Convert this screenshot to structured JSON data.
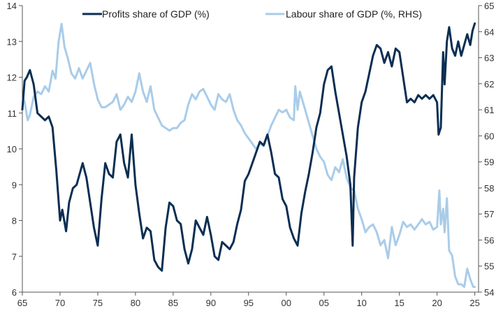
{
  "chart_data": {
    "type": "line",
    "title": "",
    "xlabel": "",
    "ylabel": "",
    "x_tick_labels": [
      "65",
      "70",
      "75",
      "80",
      "85",
      "90",
      "95",
      "00",
      "05",
      "10",
      "15",
      "20",
      "25"
    ],
    "x_tick_years": [
      1965,
      1970,
      1975,
      1980,
      1985,
      1990,
      1995,
      2000,
      2005,
      2010,
      2015,
      2020,
      2025
    ],
    "xlim": [
      1965,
      2025.5
    ],
    "y_left": {
      "lim": [
        6,
        14
      ],
      "ticks": [
        6,
        7,
        8,
        9,
        10,
        11,
        12,
        13,
        14
      ]
    },
    "y_right": {
      "lim": [
        54,
        65
      ],
      "ticks": [
        54,
        55,
        56,
        57,
        58,
        59,
        60,
        61,
        62,
        63,
        64,
        65
      ]
    },
    "grid": false,
    "legend_position": "top",
    "series": [
      {
        "name": "Profits share of GDP (%)",
        "axis": "left",
        "color": "#0b2e52",
        "points": [
          [
            1965.0,
            11.1
          ],
          [
            1965.3,
            11.9
          ],
          [
            1965.6,
            12.0
          ],
          [
            1966.0,
            12.2
          ],
          [
            1966.5,
            11.8
          ],
          [
            1967.0,
            11.0
          ],
          [
            1967.5,
            10.9
          ],
          [
            1968.0,
            10.8
          ],
          [
            1968.5,
            10.9
          ],
          [
            1969.0,
            10.6
          ],
          [
            1969.5,
            9.4
          ],
          [
            1970.0,
            8.0
          ],
          [
            1970.3,
            8.3
          ],
          [
            1970.8,
            7.7
          ],
          [
            1971.2,
            8.5
          ],
          [
            1971.7,
            8.9
          ],
          [
            1972.2,
            9.0
          ],
          [
            1972.6,
            9.3
          ],
          [
            1973.0,
            9.6
          ],
          [
            1973.5,
            9.2
          ],
          [
            1974.0,
            8.5
          ],
          [
            1974.5,
            7.8
          ],
          [
            1975.0,
            7.3
          ],
          [
            1975.5,
            8.6
          ],
          [
            1976.0,
            9.6
          ],
          [
            1976.5,
            9.3
          ],
          [
            1977.0,
            9.2
          ],
          [
            1977.5,
            10.2
          ],
          [
            1978.0,
            10.4
          ],
          [
            1978.5,
            9.6
          ],
          [
            1979.0,
            9.2
          ],
          [
            1979.5,
            10.4
          ],
          [
            1980.0,
            9.0
          ],
          [
            1980.5,
            8.2
          ],
          [
            1981.0,
            7.5
          ],
          [
            1981.5,
            7.8
          ],
          [
            1982.0,
            7.7
          ],
          [
            1982.5,
            6.9
          ],
          [
            1983.0,
            6.7
          ],
          [
            1983.5,
            6.6
          ],
          [
            1984.0,
            7.8
          ],
          [
            1984.5,
            8.5
          ],
          [
            1985.0,
            8.4
          ],
          [
            1985.5,
            8.0
          ],
          [
            1986.0,
            7.9
          ],
          [
            1986.5,
            7.2
          ],
          [
            1987.0,
            6.8
          ],
          [
            1987.5,
            7.2
          ],
          [
            1988.0,
            8.0
          ],
          [
            1988.5,
            7.8
          ],
          [
            1989.0,
            7.6
          ],
          [
            1989.5,
            8.1
          ],
          [
            1990.0,
            7.6
          ],
          [
            1990.5,
            7.0
          ],
          [
            1991.0,
            6.9
          ],
          [
            1991.5,
            7.4
          ],
          [
            1992.0,
            7.3
          ],
          [
            1992.5,
            7.2
          ],
          [
            1993.0,
            7.4
          ],
          [
            1993.5,
            7.9
          ],
          [
            1994.0,
            8.3
          ],
          [
            1994.5,
            9.1
          ],
          [
            1995.0,
            9.3
          ],
          [
            1995.5,
            9.6
          ],
          [
            1996.0,
            9.9
          ],
          [
            1996.5,
            10.2
          ],
          [
            1997.0,
            10.1
          ],
          [
            1997.5,
            10.4
          ],
          [
            1998.0,
            9.9
          ],
          [
            1998.5,
            9.3
          ],
          [
            1999.0,
            9.2
          ],
          [
            1999.5,
            8.6
          ],
          [
            2000.0,
            8.4
          ],
          [
            2000.5,
            7.8
          ],
          [
            2001.0,
            7.5
          ],
          [
            2001.5,
            7.3
          ],
          [
            2002.0,
            8.2
          ],
          [
            2002.5,
            8.8
          ],
          [
            2003.0,
            9.3
          ],
          [
            2003.5,
            9.9
          ],
          [
            2004.0,
            10.6
          ],
          [
            2004.5,
            11.0
          ],
          [
            2005.0,
            11.8
          ],
          [
            2005.5,
            12.2
          ],
          [
            2006.0,
            12.3
          ],
          [
            2006.5,
            11.6
          ],
          [
            2007.0,
            11.0
          ],
          [
            2007.5,
            10.4
          ],
          [
            2008.0,
            9.8
          ],
          [
            2008.5,
            9.0
          ],
          [
            2008.8,
            7.3
          ],
          [
            2009.0,
            9.2
          ],
          [
            2009.5,
            10.6
          ],
          [
            2010.0,
            11.3
          ],
          [
            2010.5,
            11.6
          ],
          [
            2011.0,
            12.1
          ],
          [
            2011.5,
            12.6
          ],
          [
            2012.0,
            12.9
          ],
          [
            2012.5,
            12.8
          ],
          [
            2013.0,
            12.4
          ],
          [
            2013.5,
            12.7
          ],
          [
            2014.0,
            12.3
          ],
          [
            2014.5,
            12.8
          ],
          [
            2015.0,
            12.7
          ],
          [
            2015.5,
            12.0
          ],
          [
            2016.0,
            11.3
          ],
          [
            2016.5,
            11.4
          ],
          [
            2017.0,
            11.3
          ],
          [
            2017.5,
            11.5
          ],
          [
            2018.0,
            11.4
          ],
          [
            2018.5,
            11.5
          ],
          [
            2019.0,
            11.4
          ],
          [
            2019.5,
            11.5
          ],
          [
            2020.0,
            11.3
          ],
          [
            2020.2,
            10.4
          ],
          [
            2020.5,
            10.6
          ],
          [
            2020.8,
            12.7
          ],
          [
            2021.0,
            11.8
          ],
          [
            2021.3,
            13.0
          ],
          [
            2021.6,
            13.4
          ],
          [
            2022.0,
            12.8
          ],
          [
            2022.4,
            12.6
          ],
          [
            2022.8,
            13.0
          ],
          [
            2023.2,
            12.6
          ],
          [
            2023.6,
            12.9
          ],
          [
            2024.0,
            13.2
          ],
          [
            2024.4,
            12.9
          ],
          [
            2024.7,
            13.3
          ],
          [
            2025.0,
            13.5
          ]
        ]
      },
      {
        "name": "Labour share of GDP (%, RHS)",
        "axis": "right",
        "color": "#a9cce9",
        "points": [
          [
            1965.0,
            61.5
          ],
          [
            1965.3,
            61.3
          ],
          [
            1965.7,
            60.6
          ],
          [
            1966.0,
            60.8
          ],
          [
            1966.5,
            61.5
          ],
          [
            1967.0,
            61.7
          ],
          [
            1967.5,
            61.6
          ],
          [
            1968.0,
            61.9
          ],
          [
            1968.5,
            61.7
          ],
          [
            1969.0,
            62.5
          ],
          [
            1969.4,
            62.2
          ],
          [
            1969.8,
            63.6
          ],
          [
            1970.2,
            64.3
          ],
          [
            1970.6,
            63.4
          ],
          [
            1971.0,
            63.0
          ],
          [
            1971.5,
            62.4
          ],
          [
            1972.0,
            62.2
          ],
          [
            1972.5,
            62.6
          ],
          [
            1973.0,
            62.2
          ],
          [
            1973.5,
            62.5
          ],
          [
            1974.0,
            62.8
          ],
          [
            1974.5,
            62.0
          ],
          [
            1975.0,
            61.4
          ],
          [
            1975.5,
            61.1
          ],
          [
            1976.0,
            61.1
          ],
          [
            1976.5,
            61.2
          ],
          [
            1977.0,
            61.3
          ],
          [
            1977.5,
            61.6
          ],
          [
            1978.0,
            61.0
          ],
          [
            1978.5,
            61.2
          ],
          [
            1979.0,
            61.5
          ],
          [
            1979.5,
            61.3
          ],
          [
            1980.0,
            61.7
          ],
          [
            1980.5,
            62.4
          ],
          [
            1981.0,
            61.7
          ],
          [
            1981.5,
            61.3
          ],
          [
            1982.0,
            61.9
          ],
          [
            1982.5,
            61.0
          ],
          [
            1983.0,
            60.7
          ],
          [
            1983.5,
            60.4
          ],
          [
            1984.0,
            60.3
          ],
          [
            1984.5,
            60.2
          ],
          [
            1985.0,
            60.3
          ],
          [
            1985.5,
            60.3
          ],
          [
            1986.0,
            60.5
          ],
          [
            1986.5,
            60.6
          ],
          [
            1987.0,
            61.2
          ],
          [
            1987.5,
            61.6
          ],
          [
            1988.0,
            61.4
          ],
          [
            1988.5,
            61.7
          ],
          [
            1989.0,
            61.8
          ],
          [
            1989.5,
            61.5
          ],
          [
            1990.0,
            61.2
          ],
          [
            1990.5,
            61.0
          ],
          [
            1991.0,
            61.6
          ],
          [
            1991.5,
            61.4
          ],
          [
            1992.0,
            61.3
          ],
          [
            1992.5,
            61.6
          ],
          [
            1993.0,
            61.0
          ],
          [
            1993.5,
            60.6
          ],
          [
            1994.0,
            60.4
          ],
          [
            1994.5,
            60.1
          ],
          [
            1995.0,
            59.9
          ],
          [
            1995.5,
            59.7
          ],
          [
            1996.0,
            59.5
          ],
          [
            1996.5,
            59.7
          ],
          [
            1997.0,
            59.6
          ],
          [
            1997.5,
            60.0
          ],
          [
            1998.0,
            60.4
          ],
          [
            1998.5,
            60.7
          ],
          [
            1999.0,
            61.0
          ],
          [
            1999.5,
            60.9
          ],
          [
            2000.0,
            61.0
          ],
          [
            2000.5,
            60.7
          ],
          [
            2001.0,
            60.6
          ],
          [
            2001.2,
            61.9
          ],
          [
            2001.5,
            61.0
          ],
          [
            2001.8,
            61.7
          ],
          [
            2002.0,
            61.5
          ],
          [
            2002.5,
            61.0
          ],
          [
            2003.0,
            60.5
          ],
          [
            2003.5,
            60.0
          ],
          [
            2004.0,
            59.5
          ],
          [
            2004.5,
            59.2
          ],
          [
            2005.0,
            59.0
          ],
          [
            2005.5,
            58.5
          ],
          [
            2006.0,
            58.3
          ],
          [
            2006.5,
            58.8
          ],
          [
            2007.0,
            58.6
          ],
          [
            2007.5,
            59.1
          ],
          [
            2008.0,
            58.4
          ],
          [
            2008.5,
            58.0
          ],
          [
            2009.0,
            57.9
          ],
          [
            2009.5,
            57.2
          ],
          [
            2010.0,
            56.8
          ],
          [
            2010.5,
            56.3
          ],
          [
            2011.0,
            56.5
          ],
          [
            2011.5,
            56.6
          ],
          [
            2012.0,
            56.3
          ],
          [
            2012.5,
            55.8
          ],
          [
            2013.0,
            56.0
          ],
          [
            2013.5,
            55.3
          ],
          [
            2014.0,
            56.5
          ],
          [
            2014.5,
            55.8
          ],
          [
            2015.0,
            56.2
          ],
          [
            2015.5,
            56.7
          ],
          [
            2016.0,
            56.5
          ],
          [
            2016.5,
            56.6
          ],
          [
            2017.0,
            56.4
          ],
          [
            2017.5,
            56.6
          ],
          [
            2018.0,
            56.8
          ],
          [
            2018.5,
            56.6
          ],
          [
            2019.0,
            56.7
          ],
          [
            2019.5,
            56.4
          ],
          [
            2020.0,
            56.5
          ],
          [
            2020.3,
            57.9
          ],
          [
            2020.5,
            56.6
          ],
          [
            2020.8,
            57.2
          ],
          [
            2021.0,
            56.3
          ],
          [
            2021.3,
            57.6
          ],
          [
            2021.6,
            55.6
          ],
          [
            2022.0,
            55.4
          ],
          [
            2022.4,
            54.6
          ],
          [
            2022.8,
            54.3
          ],
          [
            2023.2,
            54.3
          ],
          [
            2023.6,
            54.2
          ],
          [
            2024.0,
            54.9
          ],
          [
            2024.4,
            54.5
          ],
          [
            2024.8,
            54.2
          ],
          [
            2025.0,
            54.2
          ]
        ]
      }
    ]
  }
}
